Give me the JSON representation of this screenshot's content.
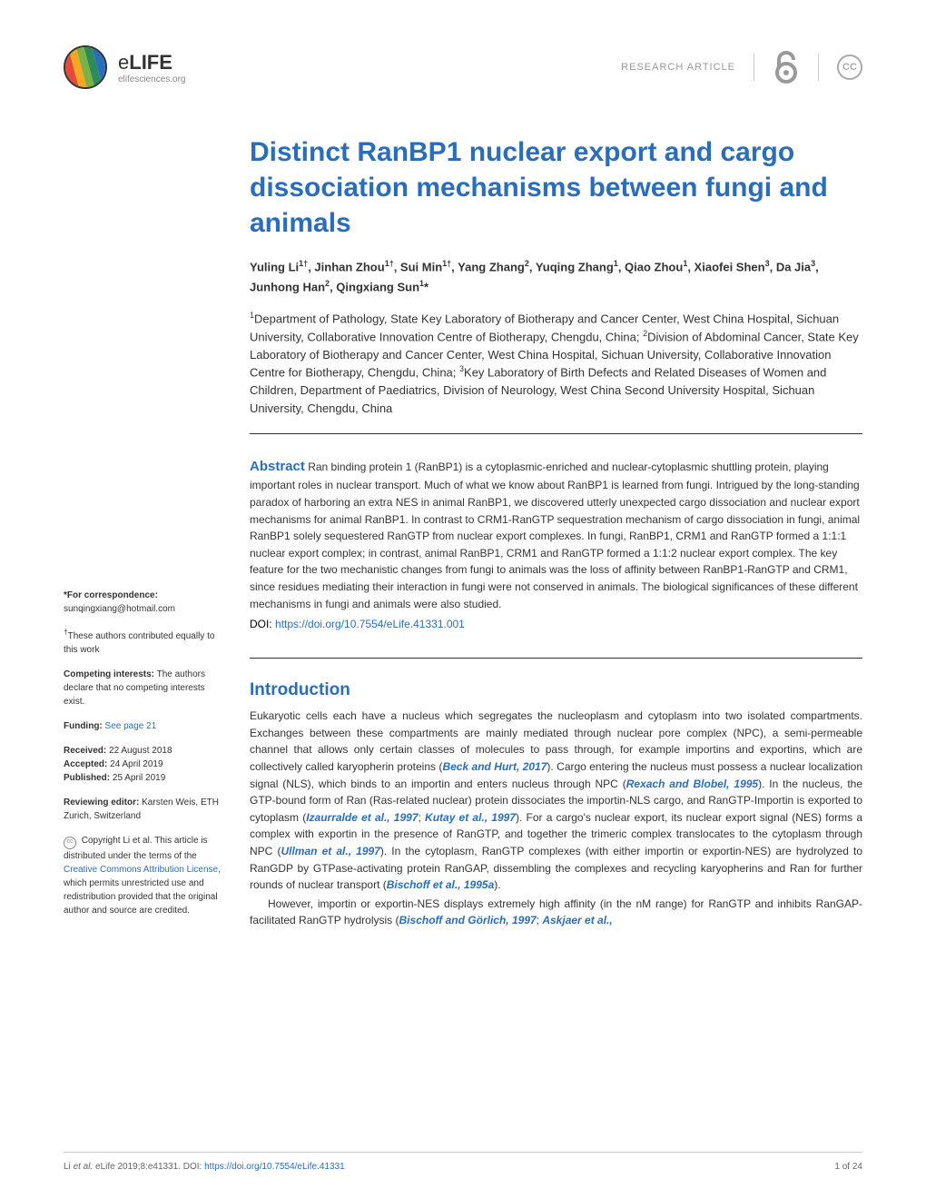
{
  "header": {
    "logo_name_e": "e",
    "logo_name_rest": "LIFE",
    "logo_sub": "elifesciences.org",
    "article_type": "RESEARCH ARTICLE",
    "oa_symbol": "∂",
    "cc_symbol": "CC",
    "logo_colors": [
      "#c73a8e",
      "#e84a3a",
      "#f5a623",
      "#7bb342",
      "#2a8c5a",
      "#2a6ebb",
      "#5a4a9c"
    ]
  },
  "title": "Distinct RanBP1 nuclear export and cargo dissociation mechanisms between fungi and animals",
  "authors_html": "Yuling Li<sup>1†</sup>, Jinhan Zhou<sup>1†</sup>, Sui Min<sup>1†</sup>, Yang Zhang<sup>2</sup>, Yuqing Zhang<sup>1</sup>, Qiao Zhou<sup>1</sup>, Xiaofei Shen<sup>3</sup>, Da Jia<sup>3</sup>, Junhong Han<sup>2</sup>, Qingxiang Sun<sup>1</sup>*",
  "affiliations_html": "<sup>1</sup>Department of Pathology, State Key Laboratory of Biotherapy and Cancer Center, West China Hospital, Sichuan University, Collaborative Innovation Centre of Biotherapy, Chengdu, China; <sup>2</sup>Division of Abdominal Cancer, State Key Laboratory of Biotherapy and Cancer Center, West China Hospital, Sichuan University, Collaborative Innovation Centre for Biotherapy, Chengdu, China; <sup>3</sup>Key Laboratory of Birth Defects and Related Diseases of Women and Children, Department of Paediatrics, Division of Neurology, West China Second University Hospital, Sichuan University, Chengdu, China",
  "abstract_label": "Abstract",
  "abstract": "Ran binding protein 1 (RanBP1) is a cytoplasmic-enriched and nuclear-cytoplasmic shuttling protein, playing important roles in nuclear transport. Much of what we know about RanBP1 is learned from fungi. Intrigued by the long-standing paradox of harboring an extra NES in animal RanBP1, we discovered utterly unexpected cargo dissociation and nuclear export mechanisms for animal RanBP1. In contrast to CRM1-RanGTP sequestration mechanism of cargo dissociation in fungi, animal RanBP1 solely sequestered RanGTP from nuclear export complexes. In fungi, RanBP1, CRM1 and RanGTP formed a 1:1:1 nuclear export complex; in contrast, animal RanBP1, CRM1 and RanGTP formed a 1:1:2 nuclear export complex. The key feature for the two mechanistic changes from fungi to animals was the loss of affinity between RanBP1-RanGTP and CRM1, since residues mediating their interaction in fungi were not conserved in animals. The biological significances of these different mechanisms in fungi and animals were also studied.",
  "doi_label": "DOI:",
  "doi_url": "https://doi.org/10.7554/eLife.41331.001",
  "intro_title": "Introduction",
  "intro_p1_pre": "Eukaryotic cells each have a nucleus which segregates the nucleoplasm and cytoplasm into two isolated compartments. Exchanges between these compartments are mainly mediated through nuclear pore complex (NPC), a semi-permeable channel that allows only certain classes of molecules to pass through, for example importins and exportins, which are collectively called karyopherin proteins (",
  "ref1": "Beck and Hurt, 2017",
  "intro_p1_mid1": "). Cargo entering the nucleus must possess a nuclear localization signal (NLS), which binds to an importin and enters nucleus through NPC (",
  "ref2": "Rexach and Blobel, 1995",
  "intro_p1_mid2": "). In the nucleus, the GTP-bound form of Ran (Ras-related nuclear) protein dissociates the importin-NLS cargo, and RanGTP-Importin is exported to cytoplasm (",
  "ref3": "Izaurralde et al., 1997",
  "intro_semicolon": "; ",
  "ref4": "Kutay et al., 1997",
  "intro_p1_mid3": "). For a cargo's nuclear export, its nuclear export signal (NES) forms a complex with exportin in the presence of RanGTP, and together the trimeric complex translocates to the cytoplasm through NPC (",
  "ref5": "Ullman et al., 1997",
  "intro_p1_mid4": "). In the cytoplasm, RanGTP complexes (with either importin or exportin-NES) are hydrolyzed to RanGDP by GTPase-activating protein RanGAP, dissembling the complexes and recycling karyopherins and Ran for further rounds of nuclear transport (",
  "ref6": "Bischoff et al., 1995a",
  "intro_p1_end": ").",
  "intro_p2_pre": "However, importin or exportin-NES displays extremely high affinity (in the nM range) for RanGTP and inhibits RanGAP-facilitated RanGTP hydrolysis (",
  "ref7": "Bischoff and Görlich, 1997",
  "ref8": "Askjaer et al.,",
  "sidebar": {
    "correspondence_label": "*For correspondence:",
    "correspondence_email": "sunqingxiang@hotmail.com",
    "equal_contrib": "†These authors contributed equally to this work",
    "competing_label": "Competing interests:",
    "competing_text": " The authors declare that no competing interests exist.",
    "funding_label": "Funding:",
    "funding_link": "See page 21",
    "received_label": "Received:",
    "received_date": " 22 August 2018",
    "accepted_label": "Accepted:",
    "accepted_date": " 24 April 2019",
    "published_label": "Published:",
    "published_date": " 25 April 2019",
    "reviewing_label": "Reviewing editor:",
    "reviewing_text": " Karsten Weis, ETH Zurich, Switzerland",
    "copyright_pre": " Copyright Li et al. This article is distributed under the terms of the ",
    "copyright_link": "Creative Commons Attribution License,",
    "copyright_post": " which permits unrestricted use and redistribution provided that the original author and source are credited."
  },
  "footer": {
    "citation_pre": "Li ",
    "citation_em": "et al.",
    "citation_post": " eLife 2019;8:e41331. ",
    "doi_label": "DOI:",
    "doi_url": "https://doi.org/10.7554/eLife.41331",
    "page": "1 of 24"
  }
}
